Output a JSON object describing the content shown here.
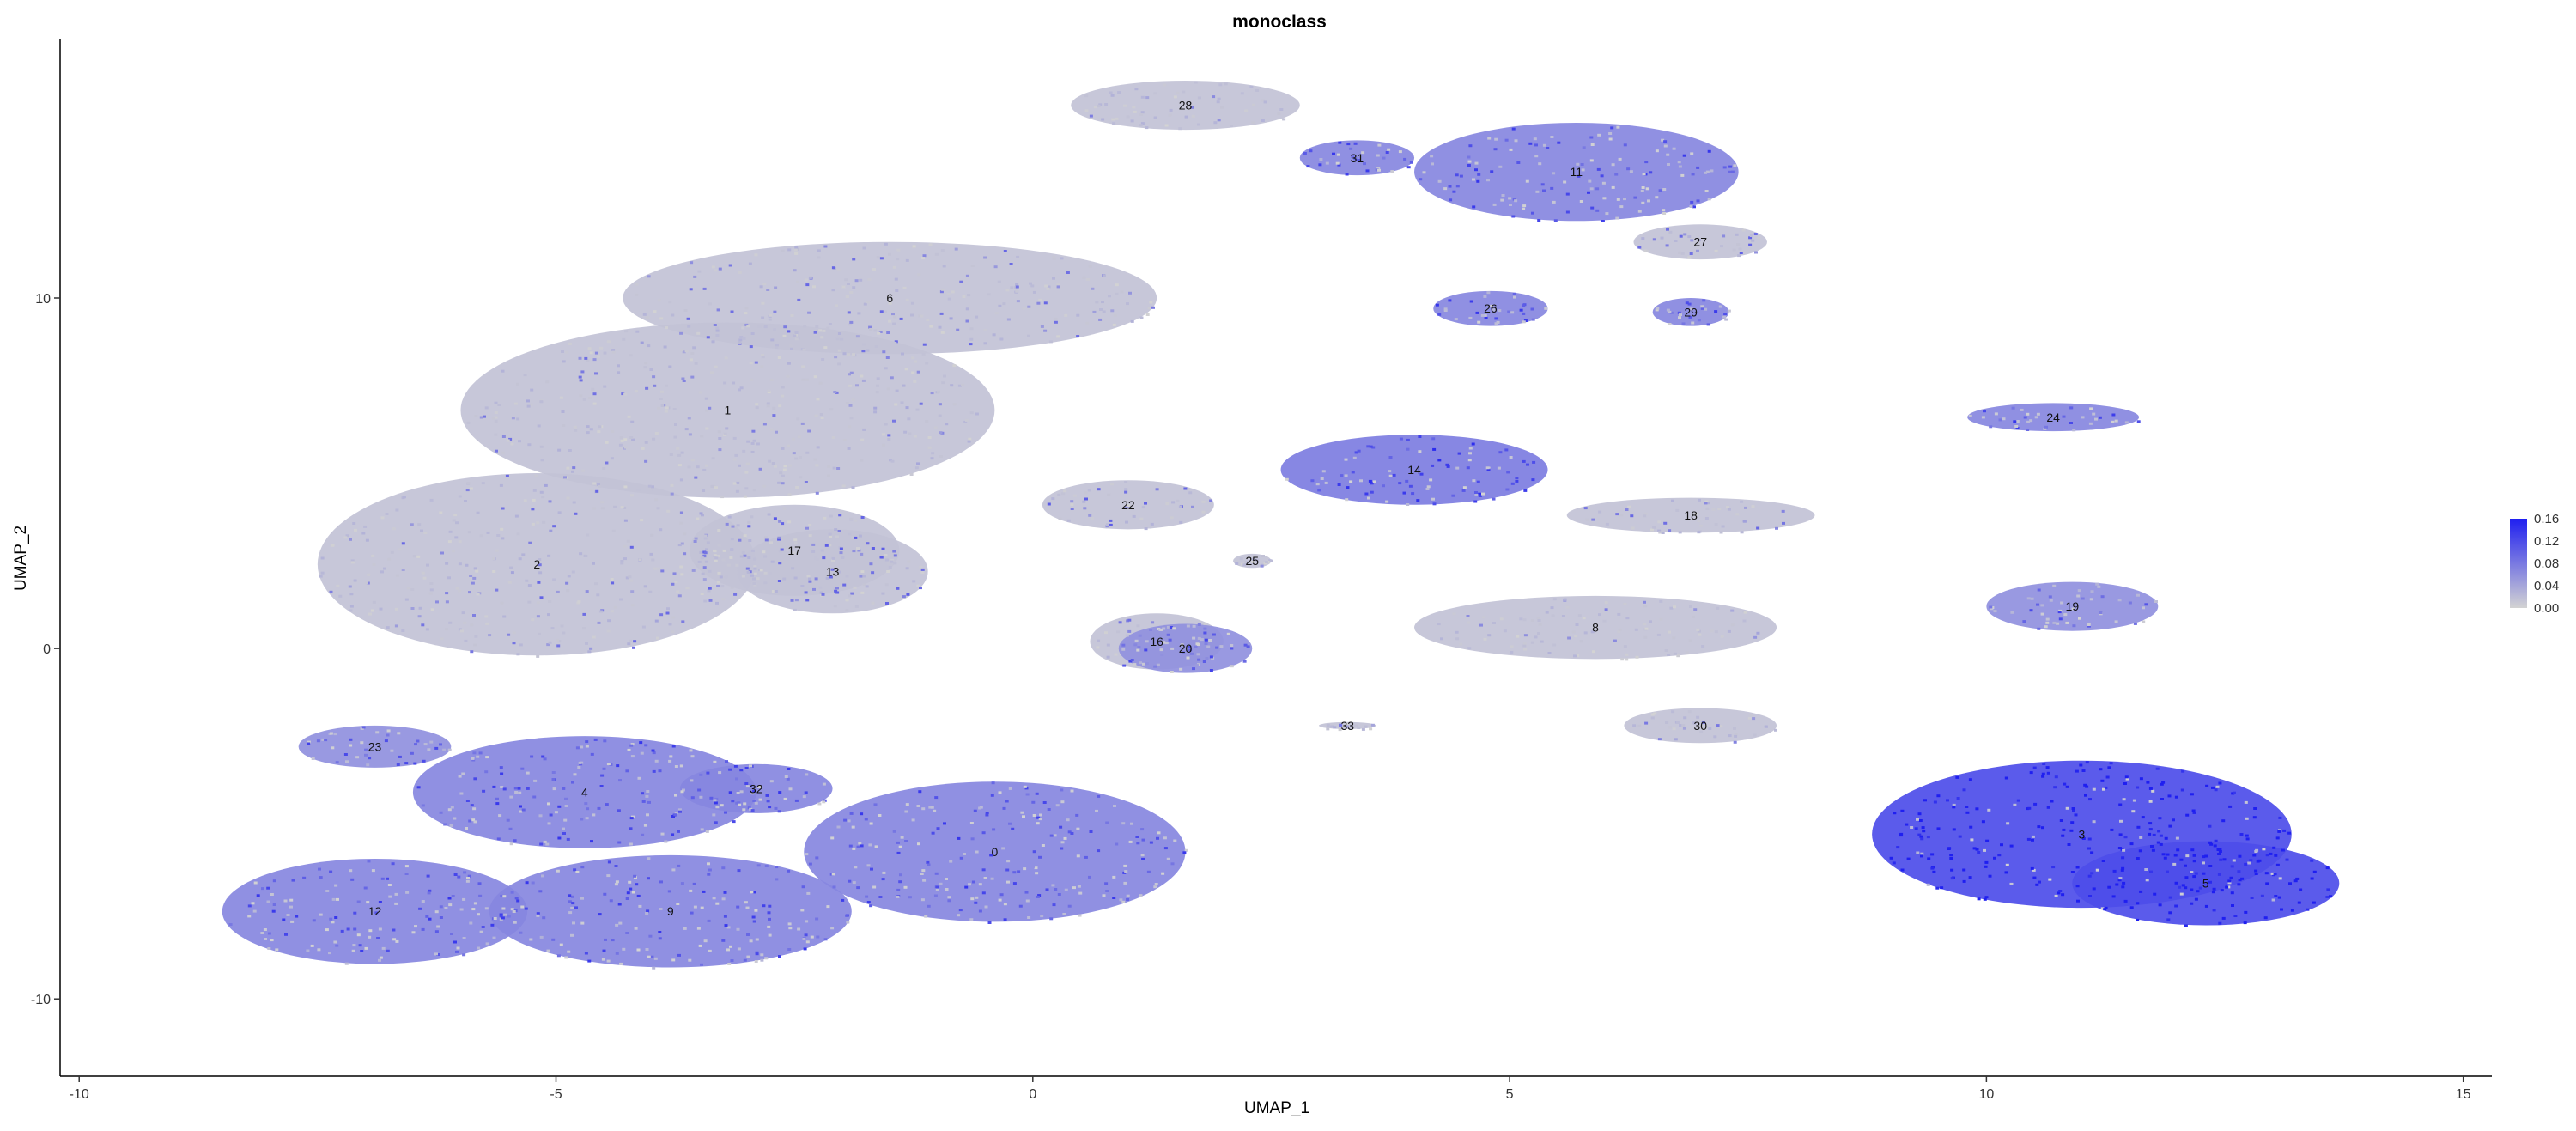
{
  "chart_data": {
    "type": "scatter",
    "title": "monoclass",
    "xlabel": "UMAP_1",
    "ylabel": "UMAP_2",
    "xlim": [
      -10.2,
      15.3
    ],
    "ylim": [
      -12.2,
      17.4
    ],
    "x_ticks": [
      {
        "value": -10,
        "label": "-10"
      },
      {
        "value": -5,
        "label": "-5"
      },
      {
        "value": 0,
        "label": "0"
      },
      {
        "value": 5,
        "label": "5"
      },
      {
        "value": 10,
        "label": "10"
      },
      {
        "value": 15,
        "label": "15"
      }
    ],
    "y_ticks": [
      {
        "value": -10,
        "label": "-10"
      },
      {
        "value": 0,
        "label": "0"
      },
      {
        "value": 10,
        "label": "10"
      }
    ],
    "grid": false,
    "legend": {
      "placement": "right",
      "type": "colorbar",
      "min": 0.0,
      "max": 0.16,
      "labels": [
        "0.16",
        "0.12",
        "0.08",
        "0.04",
        "0.00"
      ],
      "low_color": "#d3d3d3",
      "high_color": "#1f1ff0"
    },
    "clusters": [
      {
        "label": "28",
        "x": 1.6,
        "y": 15.5,
        "rx": 1.2,
        "ry": 0.7,
        "level": 0.02
      },
      {
        "label": "31",
        "x": 3.4,
        "y": 14.0,
        "rx": 0.6,
        "ry": 0.5,
        "level": 0.08
      },
      {
        "label": "11",
        "x": 5.7,
        "y": 13.6,
        "rx": 1.7,
        "ry": 1.4,
        "level": 0.08
      },
      {
        "label": "27",
        "x": 7.0,
        "y": 11.6,
        "rx": 0.7,
        "ry": 0.5,
        "level": 0.05
      },
      {
        "label": "26",
        "x": 4.8,
        "y": 9.7,
        "rx": 0.6,
        "ry": 0.5,
        "level": 0.08
      },
      {
        "label": "29",
        "x": 6.9,
        "y": 9.6,
        "rx": 0.4,
        "ry": 0.4,
        "level": 0.08
      },
      {
        "label": "24",
        "x": 10.7,
        "y": 6.6,
        "rx": 0.9,
        "ry": 0.4,
        "level": 0.08
      },
      {
        "label": "6",
        "x": -1.5,
        "y": 10.0,
        "rx": 2.8,
        "ry": 1.6,
        "level": 0.04
      },
      {
        "label": "1",
        "x": -3.2,
        "y": 6.8,
        "rx": 2.8,
        "ry": 2.5,
        "level": 0.03
      },
      {
        "label": "2",
        "x": -5.2,
        "y": 2.4,
        "rx": 2.3,
        "ry": 2.6,
        "level": 0.04
      },
      {
        "label": "17",
        "x": -2.5,
        "y": 2.8,
        "rx": 1.1,
        "ry": 1.3,
        "level": 0.05
      },
      {
        "label": "13",
        "x": -2.1,
        "y": 2.2,
        "rx": 1.0,
        "ry": 1.2,
        "level": 0.05
      },
      {
        "label": "14",
        "x": 4.0,
        "y": 5.1,
        "rx": 1.4,
        "ry": 1.0,
        "level": 0.09
      },
      {
        "label": "22",
        "x": 1.0,
        "y": 4.1,
        "rx": 0.9,
        "ry": 0.7,
        "level": 0.05
      },
      {
        "label": "25",
        "x": 2.3,
        "y": 2.5,
        "rx": 0.2,
        "ry": 0.2,
        "level": 0.02
      },
      {
        "label": "18",
        "x": 6.9,
        "y": 3.8,
        "rx": 1.3,
        "ry": 0.5,
        "level": 0.04
      },
      {
        "label": "16",
        "x": 1.3,
        "y": 0.2,
        "rx": 0.7,
        "ry": 0.8,
        "level": 0.05
      },
      {
        "label": "20",
        "x": 1.6,
        "y": 0.0,
        "rx": 0.7,
        "ry": 0.7,
        "level": 0.07
      },
      {
        "label": "8",
        "x": 5.9,
        "y": 0.6,
        "rx": 1.9,
        "ry": 0.9,
        "level": 0.02
      },
      {
        "label": "30",
        "x": 7.0,
        "y": -2.2,
        "rx": 0.8,
        "ry": 0.5,
        "level": 0.03
      },
      {
        "label": "33",
        "x": 3.3,
        "y": -2.2,
        "rx": 0.3,
        "ry": 0.1,
        "level": 0.03
      },
      {
        "label": "19",
        "x": 10.9,
        "y": 1.2,
        "rx": 0.9,
        "ry": 0.7,
        "level": 0.07
      },
      {
        "label": "3",
        "x": 11.0,
        "y": -5.3,
        "rx": 2.2,
        "ry": 2.1,
        "level": 0.14
      },
      {
        "label": "5",
        "x": 12.3,
        "y": -6.7,
        "rx": 1.4,
        "ry": 1.2,
        "level": 0.14
      },
      {
        "label": "23",
        "x": -6.9,
        "y": -2.8,
        "rx": 0.8,
        "ry": 0.6,
        "level": 0.07
      },
      {
        "label": "4",
        "x": -4.7,
        "y": -4.1,
        "rx": 1.8,
        "ry": 1.6,
        "level": 0.08
      },
      {
        "label": "32",
        "x": -2.9,
        "y": -4.0,
        "rx": 0.8,
        "ry": 0.7,
        "level": 0.08
      },
      {
        "label": "0",
        "x": -0.4,
        "y": -5.8,
        "rx": 2.0,
        "ry": 2.0,
        "level": 0.08
      },
      {
        "label": "12",
        "x": -6.9,
        "y": -7.5,
        "rx": 1.6,
        "ry": 1.5,
        "level": 0.08
      },
      {
        "label": "9",
        "x": -3.8,
        "y": -7.5,
        "rx": 1.9,
        "ry": 1.6,
        "level": 0.08
      }
    ]
  }
}
